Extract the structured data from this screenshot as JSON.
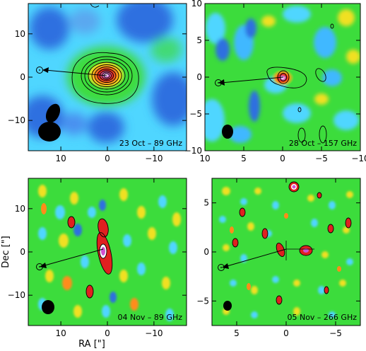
{
  "chart_data": [
    {
      "type": "heatmap",
      "panel_label": "23 Oct – 89 GHz",
      "x_ticks": [
        10,
        0,
        -10
      ],
      "y_ticks": [
        10,
        0,
        -10
      ],
      "x_range": [
        17,
        -17
      ],
      "y_range": [
        -17,
        17
      ],
      "xlabel": "",
      "ylabel": "",
      "peak": {
        "x": 0,
        "y": 1,
        "contours": 11
      },
      "marker": {
        "x": 13.5,
        "y": 1
      },
      "arrow": {
        "from": [
          0,
          0
        ],
        "to": [
          13.5,
          1
        ]
      }
    },
    {
      "type": "heatmap",
      "panel_label": "28 Oct – 157 GHz",
      "x_ticks": [
        10,
        5,
        0,
        -5,
        -10
      ],
      "y_ticks": [
        10,
        5,
        0,
        -5,
        -10
      ],
      "x_range": [
        10,
        -10
      ],
      "y_range": [
        -10,
        10
      ],
      "xlabel": "",
      "ylabel": "",
      "peak": {
        "x": 0,
        "y": 0,
        "contours": 3
      },
      "marker": {
        "x": 8.5,
        "y": -0.7
      },
      "arrow": {
        "from": [
          0,
          0
        ],
        "to": [
          8.5,
          -0.7
        ]
      }
    },
    {
      "type": "heatmap",
      "panel_label": "04 Nov – 89 GHz",
      "x_ticks": [
        10,
        0,
        -10
      ],
      "y_ticks": [
        10,
        0,
        -10
      ],
      "x_range": [
        17,
        -17
      ],
      "y_range": [
        -17,
        17
      ],
      "xlabel": "RA [\"]",
      "ylabel": "Dec [\"]",
      "peak": {
        "x": 0,
        "y": 0,
        "contours": 2
      },
      "marker": {
        "x": 13.5,
        "y": -3
      },
      "arrow": {
        "from": [
          0,
          0
        ],
        "to": [
          13.5,
          -3
        ]
      }
    },
    {
      "type": "heatmap",
      "panel_label": "05 Nov – 266 GHz",
      "x_ticks": [
        5,
        0,
        -5
      ],
      "y_ticks": [
        5,
        0,
        -5
      ],
      "x_range": [
        7.5,
        -7.5
      ],
      "y_range": [
        -7.5,
        7.5
      ],
      "xlabel": "",
      "ylabel": "",
      "peak": {
        "x": 0,
        "y": 0,
        "contours": 1
      },
      "marker": {
        "x": 6.5,
        "y": -1.8
      },
      "arrow": {
        "from": [
          0,
          0
        ],
        "to": [
          6.5,
          -1.8
        ]
      }
    }
  ],
  "colors": {
    "background_blue": "#2f6fe0",
    "light_blue": "#4fd6ff",
    "cyan": "#20e8f0",
    "green": "#3cdc3c",
    "yellow": "#f0e020",
    "orange": "#ff8c1a",
    "red": "#e02020",
    "magenta": "#d050d0"
  }
}
